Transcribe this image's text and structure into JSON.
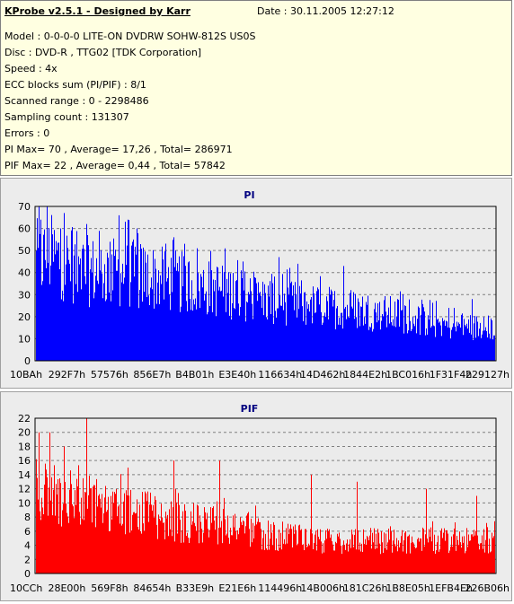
{
  "header": {
    "title": "KProbe v2.5.1 - Designed by Karr",
    "date": "Date : 30.11.2005 12:27:12"
  },
  "info_lines": [
    "Model : 0-0-0-0 LITE-ON DVDRW SOHW-812S  US0S",
    "Disc : DVD-R , TTG02 [TDK Corporation]",
    "Speed : 4x",
    "ECC blocks sum (PI/PIF) : 8/1",
    "Scanned range : 0 - 2298486",
    "Sampling count : 131307",
    "Errors : 0",
    "PI Max= 70 , Average= 17,26 , Total= 286971",
    "PIF Max= 22 , Average= 0,44 , Total= 57842"
  ],
  "chart_data": [
    {
      "type": "bar",
      "title": "PI",
      "color": "#0000ff",
      "ylim": [
        0,
        70
      ],
      "yticks": [
        0,
        10,
        20,
        30,
        40,
        50,
        60,
        70
      ],
      "xticks": [
        "10BAh",
        "292F7h",
        "57576h",
        "856E7h",
        "B4B01h",
        "E3E40h",
        "116634h",
        "14D462h",
        "1844E2h",
        "1BC016h",
        "1F31F4h",
        "229127h"
      ],
      "grid": true,
      "envelope": [
        [
          0,
          48
        ],
        [
          0.03,
          52
        ],
        [
          0.1,
          44
        ],
        [
          0.2,
          43
        ],
        [
          0.3,
          39
        ],
        [
          0.4,
          35
        ],
        [
          0.5,
          30
        ],
        [
          0.6,
          27
        ],
        [
          0.7,
          25
        ],
        [
          0.8,
          22
        ],
        [
          0.9,
          17
        ],
        [
          1.0,
          16
        ]
      ],
      "spikes": [
        [
          0.005,
          70
        ],
        [
          0.01,
          64
        ],
        [
          0.06,
          67
        ],
        [
          0.11,
          62
        ],
        [
          0.18,
          66
        ],
        [
          0.2,
          64
        ],
        [
          0.22,
          60
        ],
        [
          0.3,
          56
        ],
        [
          0.35,
          51
        ],
        [
          0.45,
          45
        ],
        [
          0.53,
          47
        ],
        [
          0.57,
          44
        ],
        [
          0.67,
          43
        ],
        [
          0.8,
          30
        ],
        [
          0.9,
          24
        ],
        [
          0.95,
          28
        ]
      ]
    },
    {
      "type": "bar",
      "title": "PIF",
      "color": "#ff0000",
      "ylim": [
        0,
        22
      ],
      "yticks": [
        0,
        2,
        4,
        6,
        8,
        10,
        12,
        14,
        16,
        18,
        20,
        22
      ],
      "xticks": [
        "10CCh",
        "28E00h",
        "569F8h",
        "84654h",
        "B33E9h",
        "E21E6h",
        "114496h",
        "14B006h",
        "181C26h",
        "1B8E05h",
        "1EFB4Eh",
        "226B06h"
      ],
      "grid": true,
      "envelope": [
        [
          0,
          13
        ],
        [
          0.05,
          12
        ],
        [
          0.15,
          10
        ],
        [
          0.3,
          8
        ],
        [
          0.45,
          7
        ],
        [
          0.5,
          6
        ],
        [
          0.6,
          5
        ],
        [
          0.8,
          5
        ],
        [
          1.0,
          5
        ]
      ],
      "spikes": [
        [
          0.005,
          20
        ],
        [
          0.03,
          20
        ],
        [
          0.06,
          18
        ],
        [
          0.11,
          22
        ],
        [
          0.2,
          15
        ],
        [
          0.3,
          16
        ],
        [
          0.4,
          16
        ],
        [
          0.6,
          14
        ],
        [
          0.7,
          13
        ],
        [
          0.85,
          12
        ],
        [
          0.96,
          11
        ]
      ]
    }
  ]
}
